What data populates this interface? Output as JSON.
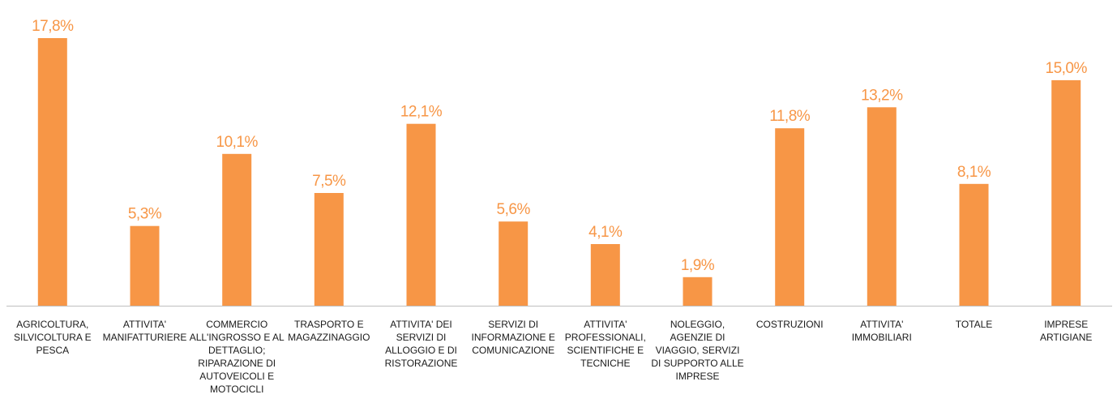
{
  "chart_data": {
    "type": "bar",
    "title": "",
    "xlabel": "",
    "ylabel": "",
    "ylim": [
      0,
      17.8
    ],
    "grid": false,
    "legend": "none",
    "bar_color": "#F79646",
    "label_color": "#F79646",
    "axis_color": "#BFBFBF",
    "categories": [
      [
        "AGRICOLTURA,",
        "SILVICOLTURA E",
        "PESCA"
      ],
      [
        "ATTIVITA'",
        "MANIFATTURIERE"
      ],
      [
        "COMMERCIO",
        "ALL'INGROSSO E AL",
        "DETTAGLIO;",
        "RIPARAZIONE DI",
        "AUTOVEICOLI E",
        "MOTOCICLI"
      ],
      [
        "TRASPORTO E",
        "MAGAZZINAGGIO"
      ],
      [
        "ATTIVITA' DEI",
        "SERVIZI DI",
        "ALLOGGIO E DI",
        "RISTORAZIONE"
      ],
      [
        "SERVIZI DI",
        "INFORMAZIONE E",
        "COMUNICAZIONE"
      ],
      [
        "ATTIVITA'",
        "PROFESSIONALI,",
        "SCIENTIFICHE E",
        "TECNICHE"
      ],
      [
        "NOLEGGIO,",
        "AGENZIE DI",
        "VIAGGIO, SERVIZI",
        "DI SUPPORTO ALLE",
        "IMPRESE"
      ],
      [
        "COSTRUZIONI"
      ],
      [
        "ATTIVITA'",
        "IMMOBILIARI"
      ],
      [
        "TOTALE"
      ],
      [
        "IMPRESE",
        "ARTIGIANE"
      ]
    ],
    "values": [
      17.8,
      5.3,
      10.1,
      7.5,
      12.1,
      5.6,
      4.1,
      1.9,
      11.8,
      13.2,
      8.1,
      15.0
    ],
    "data_labels": [
      "17,8%",
      "5,3%",
      "10,1%",
      "7,5%",
      "12,1%",
      "5,6%",
      "4,1%",
      "1,9%",
      "11,8%",
      "13,2%",
      "8,1%",
      "15,0%"
    ]
  }
}
